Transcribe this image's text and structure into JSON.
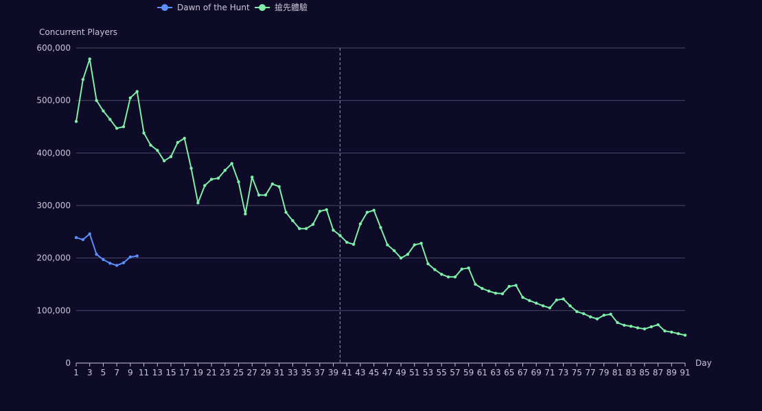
{
  "chart_data": {
    "type": "line",
    "xlabel": "Day",
    "ylabel": "Concurrent Players",
    "ylim": [
      0,
      600000
    ],
    "y_ticks": [
      0,
      100000,
      200000,
      300000,
      400000,
      500000,
      600000
    ],
    "y_tick_labels": [
      "0",
      "100,000",
      "200,000",
      "300,000",
      "400,000",
      "500,000",
      "600,000"
    ],
    "xlim": [
      1,
      91
    ],
    "x_tick_labels": [
      "1",
      "3",
      "5",
      "7",
      "9",
      "11",
      "13",
      "15",
      "17",
      "19",
      "21",
      "23",
      "25",
      "27",
      "29",
      "31",
      "33",
      "35",
      "37",
      "39",
      "41",
      "43",
      "45",
      "47",
      "49",
      "51",
      "53",
      "55",
      "57",
      "59",
      "61",
      "63",
      "65",
      "67",
      "69",
      "71",
      "73",
      "75",
      "77",
      "79",
      "81",
      "83",
      "85",
      "87",
      "89",
      "91"
    ],
    "grid": true,
    "legend_position": "top",
    "marker_line": {
      "x": 40
    },
    "series": [
      {
        "name": "Dawn of the Hunt",
        "color": "#5b8ff9",
        "x": [
          1,
          2,
          3,
          4,
          5,
          6,
          7,
          8,
          9,
          10
        ],
        "values": [
          239000,
          235000,
          246000,
          207000,
          197000,
          190000,
          186000,
          191000,
          202000,
          204000
        ]
      },
      {
        "name": "搶先體驗",
        "color": "#7ef0a8",
        "x": [
          1,
          2,
          3,
          4,
          5,
          6,
          7,
          8,
          9,
          10,
          11,
          12,
          13,
          14,
          15,
          16,
          17,
          18,
          19,
          20,
          21,
          22,
          23,
          24,
          25,
          26,
          27,
          28,
          29,
          30,
          31,
          32,
          33,
          34,
          35,
          36,
          37,
          38,
          39,
          40,
          41,
          42,
          43,
          44,
          45,
          46,
          47,
          48,
          49,
          50,
          51,
          52,
          53,
          54,
          55,
          56,
          57,
          58,
          59,
          60,
          61,
          62,
          63,
          64,
          65,
          66,
          67,
          68,
          69,
          70,
          71,
          72,
          73,
          74,
          75,
          76,
          77,
          78,
          79,
          80,
          81,
          82,
          83,
          84,
          85,
          86,
          87,
          88,
          89,
          90,
          91
        ],
        "values": [
          460000,
          540000,
          579000,
          500000,
          480000,
          464000,
          447000,
          450000,
          505000,
          517000,
          438000,
          415000,
          405000,
          385000,
          393000,
          420000,
          428000,
          371000,
          305000,
          338000,
          350000,
          352000,
          367000,
          380000,
          345000,
          284000,
          354000,
          320000,
          320000,
          341000,
          336000,
          287000,
          271000,
          256000,
          256000,
          264000,
          289000,
          292000,
          253000,
          243000,
          230000,
          226000,
          265000,
          287000,
          291000,
          258000,
          225000,
          214000,
          200000,
          207000,
          225000,
          228000,
          189000,
          178000,
          169000,
          164000,
          164000,
          179000,
          181000,
          150000,
          142000,
          137000,
          133000,
          132000,
          146000,
          148000,
          125000,
          119000,
          114000,
          109000,
          105000,
          120000,
          122000,
          109000,
          98000,
          94000,
          88000,
          84000,
          91000,
          93000,
          77000,
          72000,
          70000,
          67000,
          65000,
          69000,
          73000,
          61000,
          59000,
          56000,
          53000
        ]
      }
    ]
  }
}
